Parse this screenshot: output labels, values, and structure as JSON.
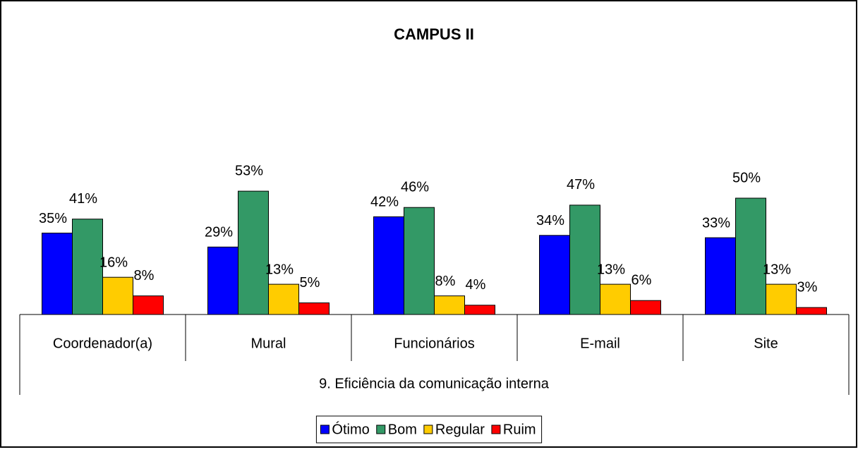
{
  "chart_data": {
    "type": "bar",
    "title": "CAMPUS II",
    "x_label": "9. Eficiência da comunicação interna",
    "categories": [
      "Coordenador(a)",
      "Mural",
      "Funcionários",
      "E-mail",
      "Site"
    ],
    "series": [
      {
        "name": "Ótimo",
        "color": "#0000ff",
        "values": [
          35,
          29,
          42,
          34,
          33
        ],
        "value_labels": [
          "35%",
          "29%",
          "42%",
          "34%",
          "33%"
        ]
      },
      {
        "name": "Bom",
        "color": "#339966",
        "values": [
          41,
          53,
          46,
          47,
          50
        ],
        "value_labels": [
          "41%",
          "53%",
          "46%",
          "47%",
          "50%"
        ]
      },
      {
        "name": "Regular",
        "color": "#ffcc00",
        "values": [
          16,
          13,
          8,
          13,
          13
        ],
        "value_labels": [
          "16%",
          "13%",
          "8%",
          "13%",
          "13%"
        ]
      },
      {
        "name": "Ruim",
        "color": "#ff0000",
        "values": [
          8,
          5,
          4,
          6,
          3
        ],
        "value_labels": [
          "8%",
          "5%",
          "4%",
          "6%",
          "3%"
        ]
      }
    ],
    "ylim": [
      0,
      100
    ],
    "legend": "bottom"
  }
}
